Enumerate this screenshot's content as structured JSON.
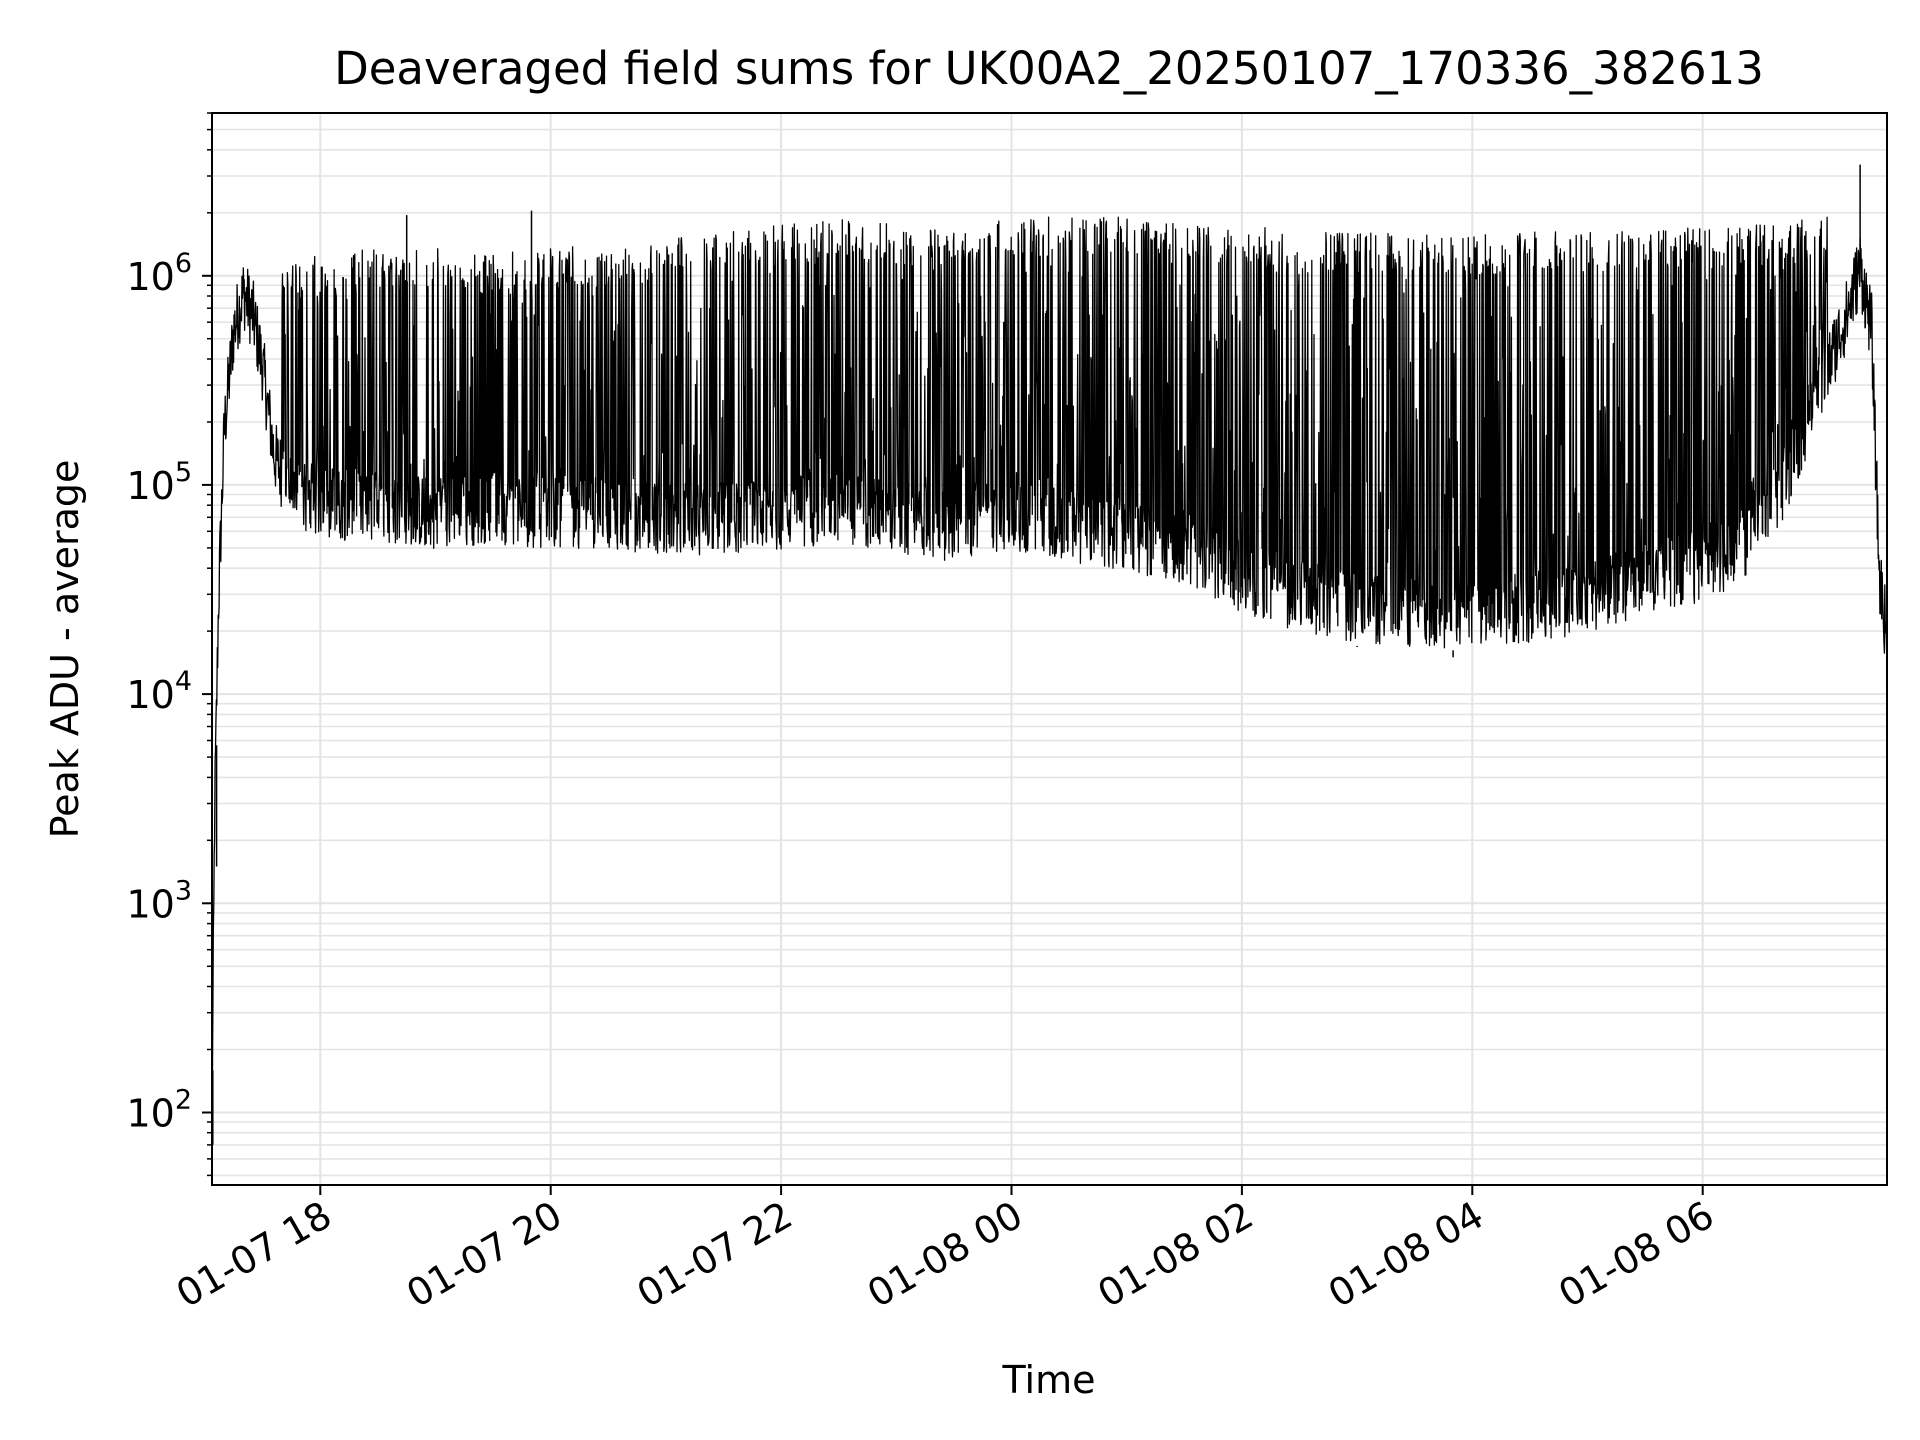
{
  "chart_data": {
    "type": "line",
    "title": "Deaveraged field sums for UK00A2_20250107_170336_382613",
    "xlabel": "Time",
    "ylabel": "Peak ADU - average",
    "xscale": "time",
    "yscale": "log",
    "xlim": [
      "2025-01-07T17:03:36",
      "2025-01-08T07:36:00"
    ],
    "ylim": [
      45,
      6000000
    ],
    "grid": true,
    "line_color": "#000000",
    "x_ticks": [
      {
        "value": "2025-01-07T18:00:00",
        "label": "01-07 18"
      },
      {
        "value": "2025-01-07T20:00:00",
        "label": "01-07 20"
      },
      {
        "value": "2025-01-07T22:00:00",
        "label": "01-07 22"
      },
      {
        "value": "2025-01-08T00:00:00",
        "label": "01-08 00"
      },
      {
        "value": "2025-01-08T02:00:00",
        "label": "01-08 02"
      },
      {
        "value": "2025-01-08T04:00:00",
        "label": "01-08 04"
      },
      {
        "value": "2025-01-08T06:00:00",
        "label": "01-08 06"
      }
    ],
    "y_ticks": [
      {
        "value": 100,
        "base": "10",
        "exp": "2"
      },
      {
        "value": 1000,
        "base": "10",
        "exp": "3"
      },
      {
        "value": 10000,
        "base": "10",
        "exp": "4"
      },
      {
        "value": 100000,
        "base": "10",
        "exp": "5"
      },
      {
        "value": 1000000,
        "base": "10",
        "exp": "6"
      }
    ],
    "series": [
      {
        "baseline": {
          "x": [
            "2025-01-07T17:03:36",
            "2025-01-07T17:05:00",
            "2025-01-07T17:07:00",
            "2025-01-07T17:10:00",
            "2025-01-07T17:15:00",
            "2025-01-07T17:20:00",
            "2025-01-07T17:25:00",
            "2025-01-07T17:30:00",
            "2025-01-07T17:36:00",
            "2025-01-07T17:45:00",
            "2025-01-07T18:00:00",
            "2025-01-07T18:30:00",
            "2025-01-07T19:00:00",
            "2025-01-07T19:30:00",
            "2025-01-07T20:00:00",
            "2025-01-07T20:30:00",
            "2025-01-07T21:00:00",
            "2025-01-07T21:30:00",
            "2025-01-07T22:00:00",
            "2025-01-07T22:30:00",
            "2025-01-07T23:00:00",
            "2025-01-07T23:30:00",
            "2025-01-08T00:00:00",
            "2025-01-08T00:10:00",
            "2025-01-08T00:30:00",
            "2025-01-08T01:00:00",
            "2025-01-08T01:30:00",
            "2025-01-08T02:00:00",
            "2025-01-08T02:30:00",
            "2025-01-08T03:00:00",
            "2025-01-08T03:30:00",
            "2025-01-08T04:00:00",
            "2025-01-08T04:30:00",
            "2025-01-08T05:00:00",
            "2025-01-08T05:30:00",
            "2025-01-08T06:00:00",
            "2025-01-08T06:20:00",
            "2025-01-08T06:40:00",
            "2025-01-08T07:00:00",
            "2025-01-08T07:15:00",
            "2025-01-08T07:22:00",
            "2025-01-08T07:28:00",
            "2025-01-08T07:32:00",
            "2025-01-08T07:36:00"
          ],
          "y": [
            100,
            3000,
            30000,
            200000,
            600000,
            900000,
            700000,
            400000,
            150000,
            100000,
            90000,
            85000,
            80000,
            85000,
            80000,
            80000,
            75000,
            75000,
            80000,
            85000,
            75000,
            70000,
            80000,
            75000,
            70000,
            60000,
            55000,
            40000,
            32000,
            28000,
            27000,
            27000,
            28000,
            32000,
            38000,
            45000,
            55000,
            100000,
            300000,
            700000,
            1200000,
            600000,
            40000,
            20000
          ]
        },
        "upper": {
          "x": [
            "2025-01-07T17:20:00",
            "2025-01-07T17:40:00",
            "2025-01-07T18:00:00",
            "2025-01-07T18:30:00",
            "2025-01-07T19:00:00",
            "2025-01-07T19:30:00",
            "2025-01-07T20:00:00",
            "2025-01-07T20:30:00",
            "2025-01-07T21:00:00",
            "2025-01-07T21:30:00",
            "2025-01-07T22:00:00",
            "2025-01-07T22:30:00",
            "2025-01-07T23:00:00",
            "2025-01-07T23:30:00",
            "2025-01-08T00:00:00",
            "2025-01-08T00:30:00",
            "2025-01-08T01:00:00",
            "2025-01-08T01:30:00",
            "2025-01-08T02:00:00",
            "2025-01-08T02:30:00",
            "2025-01-08T03:00:00",
            "2025-01-08T03:30:00",
            "2025-01-08T04:00:00",
            "2025-01-08T04:30:00",
            "2025-01-08T05:00:00",
            "2025-01-08T05:30:00",
            "2025-01-08T06:00:00",
            "2025-01-08T06:30:00",
            "2025-01-08T07:00:00",
            "2025-01-08T07:20:00"
          ],
          "y": [
            1000000,
            900000,
            1000000,
            1100000,
            1100000,
            1000000,
            1100000,
            1100000,
            1200000,
            1300000,
            1400000,
            1500000,
            1400000,
            1300000,
            1500000,
            1600000,
            1500000,
            1400000,
            1400000,
            1300000,
            1300000,
            1250000,
            1250000,
            1300000,
            1300000,
            1350000,
            1400000,
            1400000,
            1500000,
            1800000
          ]
        },
        "spikes": [
          {
            "x": "2025-01-07T18:45:00",
            "y": 1950000
          },
          {
            "x": "2025-01-07T19:50:00",
            "y": 2050000
          },
          {
            "x": "2025-01-08T07:22:00",
            "y": 3400000
          }
        ],
        "dips": [
          {
            "x": "2025-01-07T17:04:00",
            "y": 70
          },
          {
            "x": "2025-01-07T17:06:00",
            "y": 1500
          },
          {
            "x": "2025-01-08T03:00:00",
            "y": 17000
          },
          {
            "x": "2025-01-08T03:50:00",
            "y": 15000
          }
        ]
      }
    ]
  }
}
